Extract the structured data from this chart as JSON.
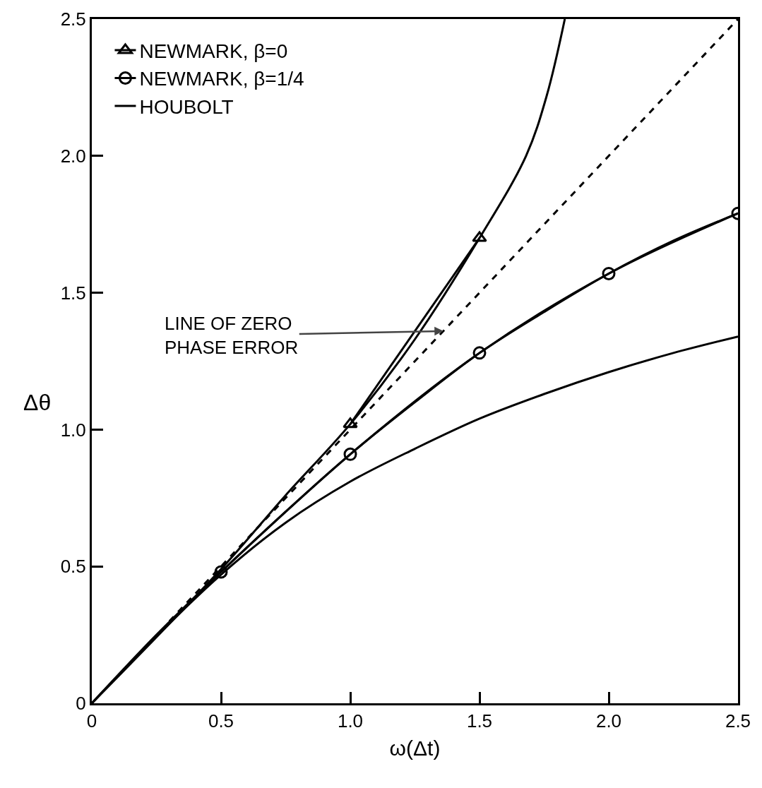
{
  "chart_data": {
    "type": "line",
    "xlabel": "ω(Δt)",
    "ylabel": "Δθ",
    "xlim": [
      0,
      2.5
    ],
    "ylim": [
      0,
      2.5
    ],
    "xticks": [
      0,
      0.5,
      {
        "value": 1,
        "label": "1.0"
      },
      1.5,
      {
        "value": 2,
        "label": "2.0"
      },
      2.5
    ],
    "yticks": [
      0,
      0.5,
      {
        "value": 1,
        "label": "1.0"
      },
      1.5,
      {
        "value": 2,
        "label": "2.0"
      },
      2.5
    ],
    "grid": false,
    "legend": "top left",
    "series": [
      {
        "name": "NEWMARK, β=0",
        "color": "#000000",
        "marker": "triangle",
        "line_style": "solid",
        "x": [
          1,
          1.5
        ],
        "values": [
          1.02,
          1.7
        ]
      },
      {
        "name": "NEWMARK, β=1/4",
        "color": "#000000",
        "marker": "circle",
        "line_style": "solid",
        "x": [
          0.5,
          1,
          1.5,
          2,
          2.5
        ],
        "values": [
          0.48,
          0.91,
          1.28,
          1.57,
          1.79
        ]
      },
      {
        "name": "HOUBOLT",
        "color": "#000000",
        "marker": "none",
        "line_style": "solid",
        "x": [
          0,
          0.25,
          0.5,
          0.75,
          1,
          1.25,
          1.5,
          1.75,
          2,
          2.25,
          2.5
        ],
        "values": [
          0,
          0.245,
          0.47,
          0.66,
          0.81,
          0.93,
          1.04,
          1.13,
          1.21,
          1.28,
          1.34
        ]
      },
      {
        "color": "#000000",
        "marker": "none",
        "line_style": "solid",
        "x": [
          0,
          0.5,
          0.75,
          1,
          1.25,
          1.5,
          1.68,
          1.76,
          1.83
        ],
        "values": [
          0,
          0.49,
          0.76,
          1.02,
          1.33,
          1.7,
          2.0,
          2.22,
          2.5
        ]
      },
      {
        "color": "#000000",
        "marker": "none",
        "line_style": "solid",
        "x": [
          0,
          0.25,
          0.5,
          0.75,
          1,
          1.25,
          1.5,
          1.75,
          2,
          2.25,
          2.5
        ],
        "values": [
          0,
          0.25,
          0.48,
          0.7,
          0.91,
          1.1,
          1.28,
          1.43,
          1.57,
          1.69,
          1.79
        ]
      },
      {
        "color": "#000000",
        "marker": "none",
        "line_style": "dashed",
        "x": [
          0.3,
          2.5
        ],
        "values": [
          0.3,
          2.5
        ]
      }
    ],
    "annotations": [
      {
        "text": "LINE OF ZERO\nPHASE ERROR",
        "x": 1.36,
        "y": 1.36
      }
    ]
  }
}
